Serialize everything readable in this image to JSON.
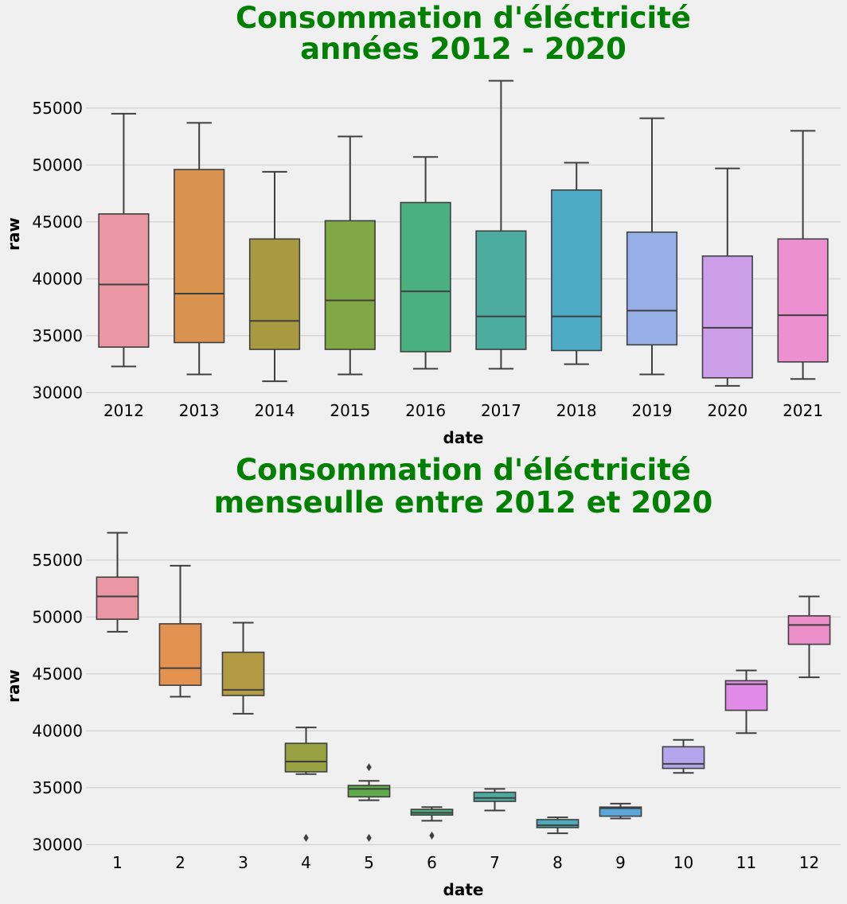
{
  "chart_data": [
    {
      "type": "box",
      "title_lines": [
        "Consommation d'éléctricité",
        "années 2012 - 2020"
      ],
      "xlabel": "date",
      "ylabel": "raw",
      "ylim": [
        29400,
        58200
      ],
      "yticks": [
        30000,
        35000,
        40000,
        45000,
        50000,
        55000
      ],
      "grid": "horizontal",
      "categories": [
        "2012",
        "2013",
        "2014",
        "2015",
        "2016",
        "2017",
        "2018",
        "2019",
        "2020",
        "2021"
      ],
      "boxes": [
        {
          "label": "2012",
          "whislo": 32300,
          "q1": 34000,
          "med": 39500,
          "q3": 45700,
          "whishi": 54500,
          "fliers": [],
          "color": "#ea96a3"
        },
        {
          "label": "2013",
          "whislo": 31600,
          "q1": 34400,
          "med": 38700,
          "q3": 49600,
          "whishi": 53700,
          "fliers": [],
          "color": "#d8944e"
        },
        {
          "label": "2014",
          "whislo": 31000,
          "q1": 33800,
          "med": 36300,
          "q3": 43500,
          "whishi": 49400,
          "fliers": [],
          "color": "#a89b3f"
        },
        {
          "label": "2015",
          "whislo": 31600,
          "q1": 33800,
          "med": 38100,
          "q3": 45100,
          "whishi": 52500,
          "fliers": [],
          "color": "#80a844"
        },
        {
          "label": "2016",
          "whislo": 32100,
          "q1": 33600,
          "med": 38900,
          "q3": 46700,
          "whishi": 50700,
          "fliers": [],
          "color": "#4ab17e"
        },
        {
          "label": "2017",
          "whislo": 32100,
          "q1": 33800,
          "med": 36700,
          "q3": 44200,
          "whishi": 57400,
          "fliers": [],
          "color": "#4cad9f"
        },
        {
          "label": "2018",
          "whislo": 32500,
          "q1": 33700,
          "med": 36700,
          "q3": 47800,
          "whishi": 50200,
          "fliers": [],
          "color": "#4eabc5"
        },
        {
          "label": "2019",
          "whislo": 31600,
          "q1": 34200,
          "med": 37200,
          "q3": 44100,
          "whishi": 54100,
          "fliers": [],
          "color": "#96b0e7"
        },
        {
          "label": "2020",
          "whislo": 30600,
          "q1": 31300,
          "med": 35700,
          "q3": 42000,
          "whishi": 49700,
          "fliers": [],
          "color": "#cd9ee8"
        },
        {
          "label": "2021",
          "whislo": 31200,
          "q1": 32700,
          "med": 36800,
          "q3": 43500,
          "whishi": 53000,
          "fliers": [],
          "color": "#ec90d0"
        }
      ]
    },
    {
      "type": "box",
      "title_lines": [
        "Consommation d'éléctricité",
        "menseulle entre 2012 et 2020"
      ],
      "xlabel": "date",
      "ylabel": "raw",
      "ylim": [
        29400,
        58200
      ],
      "yticks": [
        30000,
        35000,
        40000,
        45000,
        50000,
        55000
      ],
      "grid": "horizontal",
      "categories": [
        "1",
        "2",
        "3",
        "4",
        "5",
        "6",
        "7",
        "8",
        "9",
        "10",
        "11",
        "12"
      ],
      "boxes": [
        {
          "label": "1",
          "whislo": 48700,
          "q1": 49800,
          "med": 51800,
          "q3": 53500,
          "whishi": 57400,
          "fliers": [],
          "color": "#ea96a3"
        },
        {
          "label": "2",
          "whislo": 43000,
          "q1": 44000,
          "med": 45500,
          "q3": 49400,
          "whishi": 54500,
          "fliers": [],
          "color": "#e4924f"
        },
        {
          "label": "3",
          "whislo": 41500,
          "q1": 43100,
          "med": 43600,
          "q3": 46900,
          "whishi": 49500,
          "fliers": [],
          "color": "#b39b43"
        },
        {
          "label": "4",
          "whislo": 36200,
          "q1": 36400,
          "med": 37300,
          "q3": 38900,
          "whishi": 40300,
          "fliers": [
            30600
          ],
          "color": "#98a142"
        },
        {
          "label": "5",
          "whislo": 33900,
          "q1": 34200,
          "med": 34900,
          "q3": 35200,
          "whishi": 35600,
          "fliers": [
            36800,
            30600
          ],
          "color": "#5faa4a"
        },
        {
          "label": "6",
          "whislo": 32100,
          "q1": 32600,
          "med": 32800,
          "q3": 33100,
          "whishi": 33300,
          "fliers": [
            30800
          ],
          "color": "#4eae7b"
        },
        {
          "label": "7",
          "whislo": 33000,
          "q1": 33800,
          "med": 34100,
          "q3": 34600,
          "whishi": 34900,
          "fliers": [],
          "color": "#4dab9e"
        },
        {
          "label": "8",
          "whislo": 31000,
          "q1": 31500,
          "med": 31700,
          "q3": 32200,
          "whishi": 32400,
          "fliers": [],
          "color": "#4fa9ba"
        },
        {
          "label": "9",
          "whislo": 32300,
          "q1": 32500,
          "med": 33200,
          "q3": 33300,
          "whishi": 33600,
          "fliers": [],
          "color": "#59a7da"
        },
        {
          "label": "10",
          "whislo": 36300,
          "q1": 36700,
          "med": 37100,
          "q3": 38600,
          "whishi": 39200,
          "fliers": [],
          "color": "#b4a6ec"
        },
        {
          "label": "11",
          "whislo": 39800,
          "q1": 41800,
          "med": 44100,
          "q3": 44400,
          "whishi": 45300,
          "fliers": [],
          "color": "#e18ae7"
        },
        {
          "label": "12",
          "whislo": 44700,
          "q1": 47600,
          "med": 49300,
          "q3": 50100,
          "whishi": 51800,
          "fliers": [],
          "color": "#ec8ec7"
        }
      ]
    }
  ]
}
